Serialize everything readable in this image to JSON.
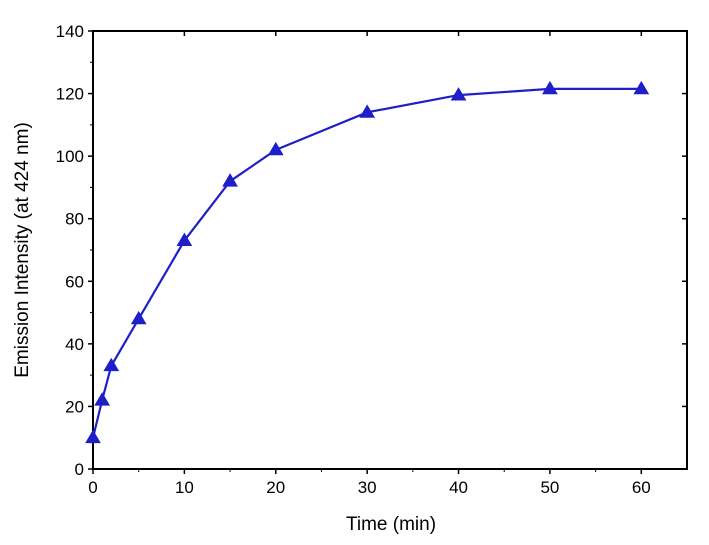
{
  "chart_data": {
    "type": "line",
    "title": "",
    "xlabel": "Time (min)",
    "ylabel": "Emission Intensity (at 424 nm)",
    "xlim": [
      0,
      65
    ],
    "ylim": [
      0,
      140
    ],
    "x_ticks": [
      0,
      10,
      20,
      30,
      40,
      50,
      60
    ],
    "y_ticks": [
      0,
      20,
      40,
      60,
      80,
      100,
      120,
      140
    ],
    "grid": false,
    "legend": "none",
    "series": [
      {
        "marker": "triangle",
        "color": "#1f1fc8",
        "x": [
          0,
          1,
          2,
          5,
          10,
          15,
          20,
          30,
          40,
          50,
          60
        ],
        "y": [
          10,
          22,
          33,
          48,
          73,
          92,
          102,
          114,
          119.5,
          121.5,
          121.5
        ]
      }
    ]
  }
}
